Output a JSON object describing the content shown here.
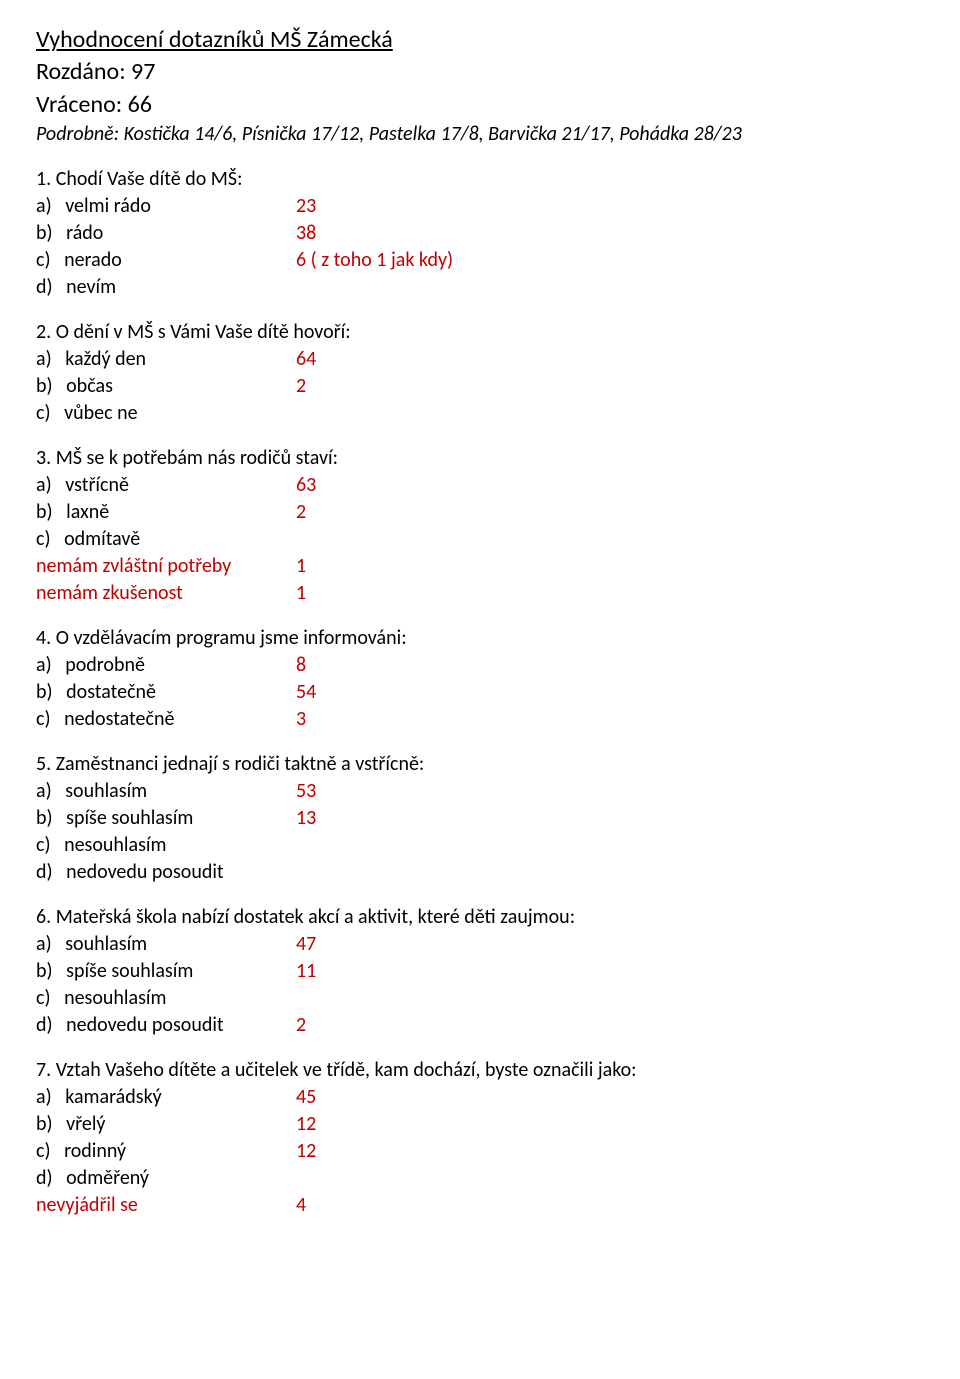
{
  "title": "Vyhodnocení dotazníků MŠ Zámecká",
  "rozdano": "Rozdáno: 97",
  "vraceno": "Vráceno: 66",
  "detail": "Podrobně: Kostička 14/6, Písnička 17/12, Pastelka 17/8, Barvička 21/17, Pohádka 28/23",
  "questions": [
    {
      "num": "1.",
      "text": "Chodí Vaše dítě do MŠ:",
      "opts": [
        {
          "letter": "a)",
          "label": "velmi rádo",
          "val": "23",
          "color": "red"
        },
        {
          "letter": "b)",
          "label": "rádo",
          "val": "38",
          "color": "red"
        },
        {
          "letter": "c)",
          "label": "nerado",
          "val": "6 ( z toho 1 jak kdy)",
          "color": "red"
        },
        {
          "letter": "d)",
          "label": "nevím",
          "val": "",
          "color": "black"
        }
      ]
    },
    {
      "num": "2.",
      "text": "O dění v MŠ s Vámi Vaše dítě hovoří:",
      "opts": [
        {
          "letter": "a)",
          "label": "každý den",
          "val": "64",
          "color": "red"
        },
        {
          "letter": "b)",
          "label": "občas",
          "val": "2",
          "color": "red"
        },
        {
          "letter": "c)",
          "label": "vůbec ne",
          "val": "",
          "color": "black"
        }
      ]
    },
    {
      "num": "3.",
      "text": "MŠ se k potřebám nás rodičů staví:",
      "opts": [
        {
          "letter": "a)",
          "label": "vstřícně",
          "val": "63",
          "color": "red"
        },
        {
          "letter": "b)",
          "label": "laxně",
          "val": "2",
          "color": "red"
        },
        {
          "letter": "c)",
          "label": "odmítavě",
          "val": "",
          "color": "black"
        }
      ],
      "extras": [
        {
          "label": "nemám zvláštní potřeby",
          "val": "1"
        },
        {
          "label": "nemám zkušenost",
          "val": "1"
        }
      ]
    },
    {
      "num": "4.",
      "text": "O vzdělávacím programu jsme informováni:",
      "opts": [
        {
          "letter": "a)",
          "label": "podrobně",
          "val": "8",
          "color": "red"
        },
        {
          "letter": "b)",
          "label": "dostatečně",
          "val": "54",
          "color": "red"
        },
        {
          "letter": "c)",
          "label": "nedostatečně",
          "val": " 3",
          "color": "red"
        }
      ]
    },
    {
      "num": "5.",
      "text": "Zaměstnanci jednají s rodiči taktně a vstřícně:",
      "opts": [
        {
          "letter": "a)",
          "label": "souhlasím",
          "val": "53",
          "color": "red"
        },
        {
          "letter": "b)",
          "label": "spíše souhlasím",
          "val": "13",
          "color": "red"
        },
        {
          "letter": "c)",
          "label": "nesouhlasím",
          "val": "",
          "color": "black"
        },
        {
          "letter": "d)",
          "label": "nedovedu posoudit",
          "val": "",
          "color": "black"
        }
      ]
    },
    {
      "num": "6.",
      "text": "Mateřská škola nabízí dostatek akcí a aktivit, které děti zaujmou:",
      "opts": [
        {
          "letter": "a)",
          "label": "souhlasím",
          "val": "47",
          "color": "red"
        },
        {
          "letter": "b)",
          "label": "spíše souhlasím",
          "val": "11",
          "color": "red"
        },
        {
          "letter": "c)",
          "label": "nesouhlasím",
          "val": "",
          "color": "black"
        },
        {
          "letter": "d)",
          "label": "nedovedu posoudit",
          "val": "2",
          "color": "red"
        }
      ]
    },
    {
      "num": "7.",
      "text": "Vztah Vašeho dítěte a učitelek ve třídě, kam dochází, byste označili jako:",
      "opts": [
        {
          "letter": "a)",
          "label": "kamarádský",
          "val": "45",
          "color": "red"
        },
        {
          "letter": "b)",
          "label": "vřelý",
          "val": "12",
          "color": "red"
        },
        {
          "letter": "c)",
          "label": "rodinný",
          "val": "12",
          "color": "red"
        },
        {
          "letter": "d)",
          "label": "odměřený",
          "val": "",
          "color": "black"
        }
      ],
      "extras": [
        {
          "label": "nevyjádřil se",
          "val": "4"
        }
      ]
    }
  ]
}
